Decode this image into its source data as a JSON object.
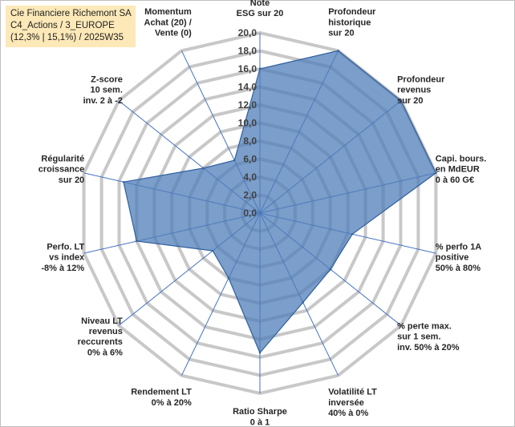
{
  "title_lines": [
    "Cie Financiere Richemont SA",
    "C4_Actions / 3_EUROPE",
    "(12,3% | 15,1%) / 2025W35"
  ],
  "colors": {
    "fill": "#4f7db8",
    "fill_opacity": 0.75,
    "stroke": "#2e5f9e",
    "grid": "#c8c8c8",
    "spoke": "#4472c4",
    "title_bg": "#fde9b8"
  },
  "chart_data": {
    "type": "radar",
    "rmin": 0,
    "rmax": 20,
    "ticks": [
      "0,0",
      "2,0",
      "4,0",
      "6,0",
      "8,0",
      "10,0",
      "12,0",
      "14,0",
      "16,0",
      "18,0",
      "20,0"
    ],
    "grid": true,
    "categories": [
      [
        "Note",
        "ESG sur 20"
      ],
      [
        "Profondeur",
        "historique",
        "sur 20"
      ],
      [
        "Profondeur",
        "revenus",
        "sur 20"
      ],
      [
        "Capi. bours.",
        "en MdEUR",
        "0 à 60 G€"
      ],
      [
        "% perfo 1A",
        "positive",
        "50% à 80%"
      ],
      [
        "% perte max.",
        "sur 1 sem.",
        "inv. 50% à 20%"
      ],
      [
        "Volatilité LT",
        "inversée",
        "40% à 0%"
      ],
      [
        "Ratio Sharpe",
        "0 à 1"
      ],
      [
        "Rendement LT",
        "0% à 20%"
      ],
      [
        "Niveau LT",
        "revenus",
        "reccurents",
        "0% à 6%"
      ],
      [
        "Perfo. LT",
        "vs index",
        "-8% à 12%"
      ],
      [
        "Régularité",
        "croissance",
        "sur 20"
      ],
      [
        "Z-score",
        "10 sem.",
        "inv. 2 à -2"
      ],
      [
        "Momentum",
        "Achat (20) /",
        "Vente (0)"
      ]
    ],
    "values": [
      16.0,
      20.0,
      20.0,
      20.0,
      10.5,
      10.0,
      11.0,
      15.5,
      8.0,
      6.7,
      14.0,
      15.5,
      8.0,
      6.5
    ]
  }
}
